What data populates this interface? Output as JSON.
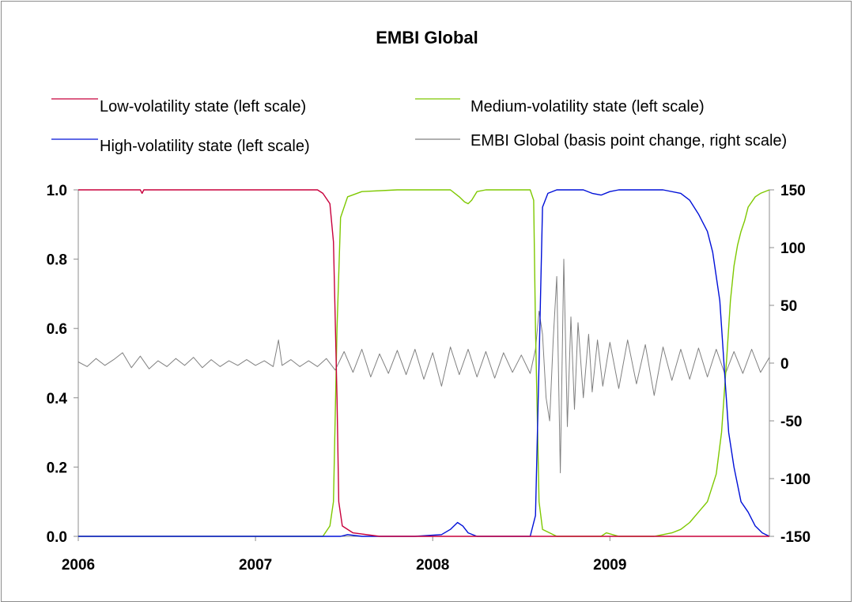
{
  "chart_data": {
    "type": "line",
    "title": "EMBI Global",
    "x_tick_labels": [
      "2006",
      "2007",
      "2008",
      "2009"
    ],
    "xlim": [
      2006.0,
      2009.9
    ],
    "left_axis": {
      "ylim": [
        0.0,
        1.0
      ],
      "tick_labels": [
        "0.0",
        "0.2",
        "0.4",
        "0.6",
        "0.8",
        "1.0"
      ],
      "tick_values": [
        0,
        0.2,
        0.4,
        0.6,
        0.8,
        1.0
      ]
    },
    "right_axis": {
      "ylim": [
        -150,
        150
      ],
      "tick_labels": [
        "-150",
        "-100",
        "-50",
        "0",
        "50",
        "100",
        "150"
      ],
      "tick_values": [
        -150,
        -100,
        -50,
        0,
        50,
        100,
        150
      ]
    },
    "legend_placement": "top, two columns",
    "series": [
      {
        "name": "Low-volatility state (left scale)",
        "color": "#c8003c",
        "axis": "left",
        "points": [
          [
            2006.0,
            1.0
          ],
          [
            2006.35,
            1.0
          ],
          [
            2006.36,
            0.99
          ],
          [
            2006.37,
            1.0
          ],
          [
            2007.35,
            1.0
          ],
          [
            2007.38,
            0.99
          ],
          [
            2007.42,
            0.96
          ],
          [
            2007.44,
            0.85
          ],
          [
            2007.46,
            0.4
          ],
          [
            2007.47,
            0.1
          ],
          [
            2007.49,
            0.03
          ],
          [
            2007.55,
            0.01
          ],
          [
            2007.7,
            0.0
          ],
          [
            2009.9,
            0.0
          ]
        ]
      },
      {
        "name": "Medium-volatility state (left scale)",
        "color": "#7ec800",
        "axis": "left",
        "points": [
          [
            2006.0,
            0.0
          ],
          [
            2007.38,
            0.0
          ],
          [
            2007.42,
            0.03
          ],
          [
            2007.44,
            0.1
          ],
          [
            2007.46,
            0.6
          ],
          [
            2007.48,
            0.92
          ],
          [
            2007.52,
            0.98
          ],
          [
            2007.6,
            0.995
          ],
          [
            2007.8,
            1.0
          ],
          [
            2008.0,
            1.0
          ],
          [
            2008.1,
            1.0
          ],
          [
            2008.15,
            0.98
          ],
          [
            2008.18,
            0.965
          ],
          [
            2008.2,
            0.96
          ],
          [
            2008.22,
            0.97
          ],
          [
            2008.25,
            0.995
          ],
          [
            2008.3,
            1.0
          ],
          [
            2008.55,
            1.0
          ],
          [
            2008.57,
            0.97
          ],
          [
            2008.58,
            0.6
          ],
          [
            2008.6,
            0.1
          ],
          [
            2008.62,
            0.02
          ],
          [
            2008.7,
            0.0
          ],
          [
            2008.95,
            0.0
          ],
          [
            2008.98,
            0.01
          ],
          [
            2009.05,
            0.0
          ],
          [
            2009.25,
            0.0
          ],
          [
            2009.3,
            0.005
          ],
          [
            2009.35,
            0.01
          ],
          [
            2009.4,
            0.02
          ],
          [
            2009.45,
            0.04
          ],
          [
            2009.5,
            0.07
          ],
          [
            2009.55,
            0.1
          ],
          [
            2009.6,
            0.18
          ],
          [
            2009.63,
            0.3
          ],
          [
            2009.66,
            0.52
          ],
          [
            2009.68,
            0.68
          ],
          [
            2009.7,
            0.78
          ],
          [
            2009.72,
            0.84
          ],
          [
            2009.74,
            0.88
          ],
          [
            2009.76,
            0.91
          ],
          [
            2009.78,
            0.95
          ],
          [
            2009.82,
            0.98
          ],
          [
            2009.85,
            0.99
          ],
          [
            2009.9,
            1.0
          ]
        ]
      },
      {
        "name": "High-volatility state (left scale)",
        "color": "#0010d8",
        "axis": "left",
        "points": [
          [
            2006.0,
            0.0
          ],
          [
            2007.48,
            0.0
          ],
          [
            2007.52,
            0.005
          ],
          [
            2007.6,
            0.0
          ],
          [
            2007.9,
            0.0
          ],
          [
            2008.05,
            0.005
          ],
          [
            2008.1,
            0.02
          ],
          [
            2008.14,
            0.04
          ],
          [
            2008.17,
            0.03
          ],
          [
            2008.2,
            0.01
          ],
          [
            2008.25,
            0.0
          ],
          [
            2008.55,
            0.0
          ],
          [
            2008.58,
            0.06
          ],
          [
            2008.6,
            0.5
          ],
          [
            2008.62,
            0.95
          ],
          [
            2008.65,
            0.99
          ],
          [
            2008.7,
            1.0
          ],
          [
            2008.85,
            1.0
          ],
          [
            2008.9,
            0.99
          ],
          [
            2008.95,
            0.985
          ],
          [
            2009.0,
            0.995
          ],
          [
            2009.05,
            1.0
          ],
          [
            2009.3,
            1.0
          ],
          [
            2009.4,
            0.99
          ],
          [
            2009.45,
            0.97
          ],
          [
            2009.5,
            0.93
          ],
          [
            2009.55,
            0.88
          ],
          [
            2009.58,
            0.82
          ],
          [
            2009.6,
            0.75
          ],
          [
            2009.62,
            0.68
          ],
          [
            2009.65,
            0.45
          ],
          [
            2009.67,
            0.3
          ],
          [
            2009.7,
            0.2
          ],
          [
            2009.74,
            0.1
          ],
          [
            2009.78,
            0.07
          ],
          [
            2009.82,
            0.03
          ],
          [
            2009.86,
            0.01
          ],
          [
            2009.9,
            0.0
          ]
        ]
      },
      {
        "name": "EMBI Global (basis point change, right scale)",
        "color": "#808080",
        "axis": "right",
        "points": [
          [
            2006.0,
            1
          ],
          [
            2006.05,
            -3
          ],
          [
            2006.1,
            4
          ],
          [
            2006.15,
            -2
          ],
          [
            2006.2,
            3
          ],
          [
            2006.25,
            9
          ],
          [
            2006.3,
            -4
          ],
          [
            2006.35,
            6
          ],
          [
            2006.4,
            -5
          ],
          [
            2006.45,
            2
          ],
          [
            2006.5,
            -3
          ],
          [
            2006.55,
            4
          ],
          [
            2006.6,
            -2
          ],
          [
            2006.65,
            5
          ],
          [
            2006.7,
            -4
          ],
          [
            2006.75,
            3
          ],
          [
            2006.8,
            -3
          ],
          [
            2006.85,
            2
          ],
          [
            2006.9,
            -2
          ],
          [
            2006.95,
            3
          ],
          [
            2007.0,
            -2
          ],
          [
            2007.05,
            2
          ],
          [
            2007.1,
            -3
          ],
          [
            2007.13,
            20
          ],
          [
            2007.15,
            -2
          ],
          [
            2007.2,
            3
          ],
          [
            2007.25,
            -3
          ],
          [
            2007.3,
            2
          ],
          [
            2007.35,
            -3
          ],
          [
            2007.4,
            4
          ],
          [
            2007.45,
            -6
          ],
          [
            2007.5,
            10
          ],
          [
            2007.55,
            -8
          ],
          [
            2007.6,
            12
          ],
          [
            2007.65,
            -12
          ],
          [
            2007.7,
            8
          ],
          [
            2007.75,
            -9
          ],
          [
            2007.8,
            11
          ],
          [
            2007.85,
            -10
          ],
          [
            2007.9,
            12
          ],
          [
            2007.95,
            -14
          ],
          [
            2008.0,
            9
          ],
          [
            2008.05,
            -20
          ],
          [
            2008.1,
            14
          ],
          [
            2008.15,
            -10
          ],
          [
            2008.2,
            12
          ],
          [
            2008.25,
            -12
          ],
          [
            2008.3,
            10
          ],
          [
            2008.35,
            -13
          ],
          [
            2008.4,
            9
          ],
          [
            2008.45,
            -8
          ],
          [
            2008.5,
            7
          ],
          [
            2008.55,
            -9
          ],
          [
            2008.58,
            12
          ],
          [
            2008.6,
            45
          ],
          [
            2008.62,
            25
          ],
          [
            2008.64,
            -30
          ],
          [
            2008.66,
            -50
          ],
          [
            2008.68,
            20
          ],
          [
            2008.7,
            75
          ],
          [
            2008.72,
            -95
          ],
          [
            2008.74,
            90
          ],
          [
            2008.76,
            -55
          ],
          [
            2008.78,
            40
          ],
          [
            2008.8,
            -40
          ],
          [
            2008.82,
            35
          ],
          [
            2008.85,
            -30
          ],
          [
            2008.88,
            25
          ],
          [
            2008.9,
            -25
          ],
          [
            2008.93,
            20
          ],
          [
            2008.96,
            -20
          ],
          [
            2009.0,
            18
          ],
          [
            2009.05,
            -22
          ],
          [
            2009.1,
            20
          ],
          [
            2009.15,
            -18
          ],
          [
            2009.2,
            16
          ],
          [
            2009.25,
            -28
          ],
          [
            2009.3,
            14
          ],
          [
            2009.35,
            -15
          ],
          [
            2009.4,
            12
          ],
          [
            2009.45,
            -14
          ],
          [
            2009.5,
            13
          ],
          [
            2009.55,
            -12
          ],
          [
            2009.6,
            12
          ],
          [
            2009.65,
            -10
          ],
          [
            2009.7,
            10
          ],
          [
            2009.75,
            -9
          ],
          [
            2009.8,
            12
          ],
          [
            2009.85,
            -8
          ],
          [
            2009.9,
            5
          ]
        ]
      }
    ]
  }
}
